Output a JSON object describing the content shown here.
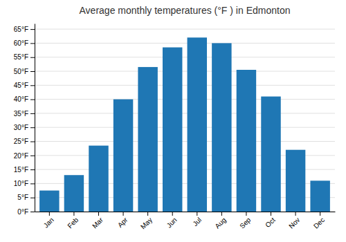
{
  "chart_data": {
    "type": "bar",
    "title": "Average monthly temperatures (°F ) in Edmonton",
    "categories": [
      "Jan",
      "Feb",
      "Mar",
      "Apr",
      "May",
      "Jun",
      "Jul",
      "Aug",
      "Sep",
      "Oct",
      "Nov",
      "Dec"
    ],
    "values": [
      7.5,
      13.0,
      23.5,
      40.0,
      51.5,
      58.5,
      62.0,
      60.0,
      50.5,
      41.0,
      22.0,
      11.0
    ],
    "ylim": [
      0,
      67
    ],
    "yticks": [
      {
        "value": 0,
        "label": "0°F"
      },
      {
        "value": 5,
        "label": "5°F"
      },
      {
        "value": 10,
        "label": "10°F"
      },
      {
        "value": 15,
        "label": "15°F"
      },
      {
        "value": 20,
        "label": "20°F"
      },
      {
        "value": 25,
        "label": "25°F"
      },
      {
        "value": 30,
        "label": "30°F"
      },
      {
        "value": 35,
        "label": "35°F"
      },
      {
        "value": 40,
        "label": "40°F"
      },
      {
        "value": 45,
        "label": "45°F"
      },
      {
        "value": 50,
        "label": "50°F"
      },
      {
        "value": 55,
        "label": "55°F"
      },
      {
        "value": 60,
        "label": "60°F"
      },
      {
        "value": 65,
        "label": "65°F"
      }
    ],
    "grid": true
  }
}
